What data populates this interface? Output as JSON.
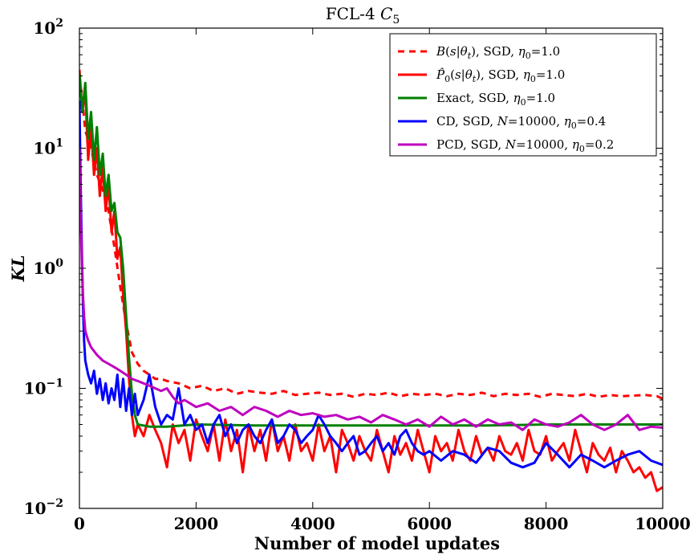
{
  "chart_data": {
    "type": "line",
    "title": "FCL-4 C₅",
    "xlabel": "Number of model updates",
    "ylabel": "KL",
    "xlim": [
      0,
      10000
    ],
    "ylim": [
      0.01,
      100
    ],
    "yscale": "log",
    "grid": false,
    "legend_position": "top-right",
    "x_tick_labels": [
      "0",
      "2000",
      "4000",
      "6000",
      "8000",
      "10000"
    ],
    "x_tick_values": [
      0,
      2000,
      4000,
      6000,
      8000,
      10000
    ],
    "y_tick_labels": [
      {
        "base": "10",
        "exp": "−2",
        "value": 0.01
      },
      {
        "base": "10",
        "exp": "−1",
        "value": 0.1
      },
      {
        "base": "10",
        "exp": "0",
        "value": 1
      },
      {
        "base": "10",
        "exp": "1",
        "value": 10
      },
      {
        "base": "10",
        "exp": "2",
        "value": 100
      }
    ],
    "series": [
      {
        "name": "B(s|θt), SGD, η0=1.0",
        "color": "#ff0000",
        "dashed": true,
        "x": [
          0,
          50,
          100,
          200,
          300,
          400,
          500,
          600,
          700,
          800,
          900,
          1000,
          1100,
          1200,
          1300,
          1400,
          1500,
          1700,
          1900,
          2100,
          2300,
          2500,
          2700,
          2900,
          3100,
          3300,
          3500,
          3700,
          3900,
          4100,
          4300,
          4500,
          4700,
          4900,
          5100,
          5300,
          5500,
          5700,
          5900,
          6100,
          6300,
          6500,
          6700,
          6900,
          7100,
          7300,
          7500,
          7700,
          7900,
          8100,
          8300,
          8500,
          8700,
          8900,
          9100,
          9300,
          9500,
          9700,
          9900,
          10000
        ],
        "y": [
          40,
          25,
          14,
          10,
          6,
          4.5,
          3,
          1.5,
          0.7,
          0.35,
          0.2,
          0.16,
          0.14,
          0.13,
          0.12,
          0.12,
          0.115,
          0.11,
          0.1,
          0.105,
          0.095,
          0.1,
          0.09,
          0.095,
          0.092,
          0.09,
          0.095,
          0.088,
          0.09,
          0.092,
          0.088,
          0.09,
          0.085,
          0.09,
          0.088,
          0.092,
          0.086,
          0.09,
          0.088,
          0.09,
          0.086,
          0.09,
          0.088,
          0.092,
          0.086,
          0.09,
          0.088,
          0.09,
          0.085,
          0.09,
          0.088,
          0.086,
          0.09,
          0.085,
          0.088,
          0.086,
          0.087,
          0.088,
          0.086,
          0.082
        ]
      },
      {
        "name": "P̂0(s|θt), SGD, η0=1.0",
        "color": "#ff0000",
        "dashed": false,
        "x": [
          0,
          50,
          100,
          150,
          200,
          250,
          300,
          350,
          400,
          450,
          500,
          550,
          600,
          650,
          700,
          750,
          800,
          850,
          900,
          950,
          1000,
          1100,
          1200,
          1300,
          1400,
          1500,
          1600,
          1700,
          1800,
          1900,
          2000,
          2100,
          2200,
          2300,
          2400,
          2500,
          2600,
          2700,
          2800,
          2900,
          3000,
          3100,
          3200,
          3300,
          3400,
          3500,
          3600,
          3700,
          3800,
          3900,
          4000,
          4100,
          4200,
          4300,
          4400,
          4500,
          4600,
          4700,
          4800,
          4900,
          5000,
          5100,
          5200,
          5300,
          5400,
          5500,
          5600,
          5700,
          5800,
          5900,
          6000,
          6100,
          6200,
          6300,
          6400,
          6500,
          6600,
          6700,
          6800,
          6900,
          7000,
          7100,
          7200,
          7300,
          7400,
          7500,
          7600,
          7700,
          7800,
          7900,
          8000,
          8100,
          8200,
          8300,
          8400,
          8500,
          8600,
          8700,
          8800,
          8900,
          9000,
          9100,
          9200,
          9300,
          9400,
          9500,
          9600,
          9700,
          9800,
          9900,
          10000
        ],
        "y": [
          45,
          20,
          30,
          8,
          15,
          6,
          10,
          4,
          7,
          3,
          5,
          2,
          3,
          1.2,
          1.5,
          0.6,
          0.3,
          0.12,
          0.06,
          0.04,
          0.05,
          0.04,
          0.06,
          0.045,
          0.035,
          0.022,
          0.05,
          0.035,
          0.045,
          0.025,
          0.055,
          0.04,
          0.03,
          0.05,
          0.025,
          0.055,
          0.03,
          0.045,
          0.02,
          0.05,
          0.03,
          0.045,
          0.025,
          0.055,
          0.03,
          0.04,
          0.025,
          0.05,
          0.03,
          0.035,
          0.025,
          0.05,
          0.03,
          0.04,
          0.02,
          0.045,
          0.035,
          0.025,
          0.04,
          0.03,
          0.025,
          0.045,
          0.03,
          0.02,
          0.04,
          0.028,
          0.035,
          0.025,
          0.045,
          0.03,
          0.02,
          0.04,
          0.03,
          0.035,
          0.025,
          0.045,
          0.03,
          0.025,
          0.04,
          0.028,
          0.032,
          0.025,
          0.04,
          0.03,
          0.028,
          0.035,
          0.025,
          0.045,
          0.03,
          0.028,
          0.04,
          0.025,
          0.03,
          0.035,
          0.025,
          0.045,
          0.03,
          0.02,
          0.035,
          0.028,
          0.025,
          0.032,
          0.02,
          0.03,
          0.025,
          0.02,
          0.022,
          0.018,
          0.02,
          0.014,
          0.015
        ]
      },
      {
        "name": "Exact, SGD, η0=1.0",
        "color": "#008000",
        "dashed": false,
        "x": [
          0,
          50,
          100,
          150,
          200,
          250,
          300,
          350,
          400,
          450,
          500,
          550,
          600,
          650,
          700,
          750,
          800,
          850,
          900,
          950,
          1000,
          1200,
          1500,
          2000,
          3000,
          4000,
          5000,
          6000,
          7000,
          8000,
          9000,
          10000
        ],
        "y": [
          42,
          20,
          35,
          12,
          20,
          8,
          15,
          6,
          9,
          4,
          6,
          3,
          3.5,
          2,
          1.8,
          1,
          0.4,
          0.18,
          0.09,
          0.06,
          0.05,
          0.048,
          0.048,
          0.05,
          0.049,
          0.049,
          0.049,
          0.049,
          0.049,
          0.05,
          0.05,
          0.05
        ]
      },
      {
        "name": "CD, SGD, N=10000, η0=0.4",
        "color": "#0000ff",
        "dashed": false,
        "x": [
          0,
          20,
          40,
          60,
          80,
          100,
          150,
          200,
          250,
          300,
          350,
          400,
          450,
          500,
          550,
          600,
          650,
          700,
          750,
          800,
          850,
          900,
          950,
          1000,
          1100,
          1200,
          1300,
          1400,
          1500,
          1600,
          1700,
          1800,
          1900,
          2000,
          2100,
          2200,
          2300,
          2400,
          2500,
          2600,
          2700,
          2800,
          2900,
          3000,
          3100,
          3200,
          3300,
          3400,
          3500,
          3600,
          3700,
          3800,
          3900,
          4000,
          4100,
          4200,
          4300,
          4400,
          4500,
          4600,
          4700,
          4800,
          4900,
          5000,
          5100,
          5200,
          5300,
          5400,
          5500,
          5600,
          5700,
          5800,
          5900,
          6000,
          6200,
          6400,
          6600,
          6800,
          7000,
          7200,
          7400,
          7600,
          7800,
          8000,
          8200,
          8400,
          8600,
          8800,
          9000,
          9200,
          9400,
          9600,
          9800,
          10000
        ],
        "y": [
          25,
          5,
          1.5,
          0.5,
          0.25,
          0.17,
          0.13,
          0.11,
          0.14,
          0.09,
          0.12,
          0.08,
          0.11,
          0.075,
          0.1,
          0.08,
          0.13,
          0.07,
          0.12,
          0.065,
          0.1,
          0.06,
          0.09,
          0.06,
          0.08,
          0.13,
          0.07,
          0.05,
          0.06,
          0.055,
          0.1,
          0.05,
          0.06,
          0.045,
          0.05,
          0.035,
          0.05,
          0.06,
          0.04,
          0.05,
          0.035,
          0.045,
          0.05,
          0.04,
          0.035,
          0.045,
          0.055,
          0.035,
          0.04,
          0.05,
          0.045,
          0.035,
          0.04,
          0.045,
          0.06,
          0.05,
          0.04,
          0.035,
          0.03,
          0.035,
          0.04,
          0.028,
          0.03,
          0.035,
          0.04,
          0.03,
          0.035,
          0.028,
          0.04,
          0.045,
          0.035,
          0.03,
          0.028,
          0.03,
          0.025,
          0.03,
          0.028,
          0.024,
          0.032,
          0.03,
          0.024,
          0.022,
          0.024,
          0.035,
          0.028,
          0.022,
          0.028,
          0.025,
          0.022,
          0.025,
          0.028,
          0.03,
          0.025,
          0.023
        ]
      },
      {
        "name": "PCD, SGD, N=10000, η0=0.2",
        "color": "#bf00bf",
        "dashed": false,
        "x": [
          0,
          20,
          40,
          60,
          80,
          100,
          150,
          200,
          300,
          400,
          500,
          600,
          700,
          800,
          900,
          1000,
          1100,
          1200,
          1300,
          1400,
          1500,
          1600,
          1700,
          1800,
          2000,
          2200,
          2400,
          2600,
          2800,
          3000,
          3200,
          3400,
          3600,
          3800,
          4000,
          4200,
          4400,
          4600,
          4800,
          5000,
          5200,
          5400,
          5600,
          5800,
          6000,
          6200,
          6400,
          6600,
          6800,
          7000,
          7200,
          7400,
          7600,
          7800,
          8000,
          8200,
          8400,
          8600,
          8800,
          9000,
          9200,
          9400,
          9600,
          9800,
          10000
        ],
        "y": [
          10,
          3,
          1.2,
          0.6,
          0.4,
          0.3,
          0.25,
          0.22,
          0.19,
          0.17,
          0.16,
          0.15,
          0.14,
          0.13,
          0.12,
          0.115,
          0.11,
          0.105,
          0.1,
          0.095,
          0.1,
          0.085,
          0.075,
          0.08,
          0.07,
          0.075,
          0.065,
          0.07,
          0.06,
          0.07,
          0.065,
          0.058,
          0.065,
          0.06,
          0.062,
          0.058,
          0.06,
          0.055,
          0.058,
          0.052,
          0.06,
          0.055,
          0.05,
          0.055,
          0.048,
          0.058,
          0.05,
          0.055,
          0.048,
          0.055,
          0.05,
          0.052,
          0.045,
          0.055,
          0.05,
          0.048,
          0.052,
          0.06,
          0.05,
          0.045,
          0.05,
          0.06,
          0.045,
          0.048,
          0.047
        ]
      }
    ]
  },
  "legend": {
    "items": [
      {
        "parts": [
          {
            "t": "B",
            "i": true
          },
          {
            "t": "("
          },
          {
            "t": "s",
            "i": true
          },
          {
            "t": "|"
          },
          {
            "t": "θ",
            "i": true
          },
          {
            "t": "t",
            "i": true,
            "sub": true
          },
          {
            "t": "), SGD, "
          },
          {
            "t": "η",
            "i": true
          },
          {
            "t": "0",
            "sub": true
          },
          {
            "t": "=1.0"
          }
        ]
      },
      {
        "parts": [
          {
            "t": "P̂",
            "i": true
          },
          {
            "t": "0",
            "sub": true
          },
          {
            "t": "("
          },
          {
            "t": "s",
            "i": true
          },
          {
            "t": "|"
          },
          {
            "t": "θ",
            "i": true
          },
          {
            "t": "t",
            "i": true,
            "sub": true
          },
          {
            "t": "), SGD, "
          },
          {
            "t": "η",
            "i": true
          },
          {
            "t": "0",
            "sub": true
          },
          {
            "t": "=1.0"
          }
        ]
      },
      {
        "parts": [
          {
            "t": "Exact, SGD, "
          },
          {
            "t": "η",
            "i": true
          },
          {
            "t": "0",
            "sub": true
          },
          {
            "t": "=1.0"
          }
        ]
      },
      {
        "parts": [
          {
            "t": "CD, SGD, "
          },
          {
            "t": "N",
            "i": true
          },
          {
            "t": "=10000, "
          },
          {
            "t": "η",
            "i": true
          },
          {
            "t": "0",
            "sub": true
          },
          {
            "t": "=0.4"
          }
        ]
      },
      {
        "parts": [
          {
            "t": "PCD, SGD, "
          },
          {
            "t": "N",
            "i": true
          },
          {
            "t": "=10000, "
          },
          {
            "t": "η",
            "i": true
          },
          {
            "t": "0",
            "sub": true
          },
          {
            "t": "=0.2"
          }
        ]
      }
    ]
  }
}
